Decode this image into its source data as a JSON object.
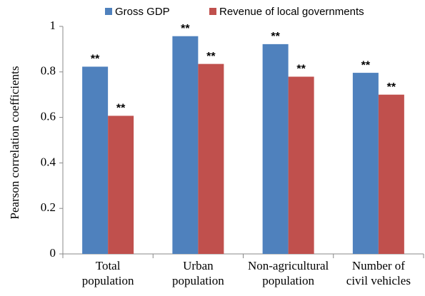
{
  "chart_data": {
    "type": "bar",
    "y_label": "Pearson correlation coefficients",
    "categories": [
      [
        "Total",
        "population"
      ],
      [
        "Urban",
        "population"
      ],
      [
        "Non-agricultural",
        "population"
      ],
      [
        "Number of",
        "civil vehicles"
      ]
    ],
    "series": [
      {
        "name": "Gross GDP",
        "color": "#4f81bd",
        "values": [
          0.823,
          0.957,
          0.922,
          0.796
        ],
        "labels": [
          "**",
          "**",
          "**",
          "**"
        ]
      },
      {
        "name": "Revenue of local governments",
        "color": "#c0504d",
        "values": [
          0.607,
          0.835,
          0.779,
          0.7
        ],
        "labels": [
          "**",
          "**",
          "**",
          "**"
        ]
      }
    ],
    "ylim": [
      0,
      1
    ],
    "yticks": [
      0,
      {
        "value": 0.2,
        "label": "0.2"
      },
      {
        "value": 0.4,
        "label": "0.4"
      },
      {
        "value": 0.6,
        "label": "0.6"
      },
      {
        "value": 0.8,
        "label": "0.8"
      },
      1
    ],
    "legend": "top",
    "grid": false
  }
}
